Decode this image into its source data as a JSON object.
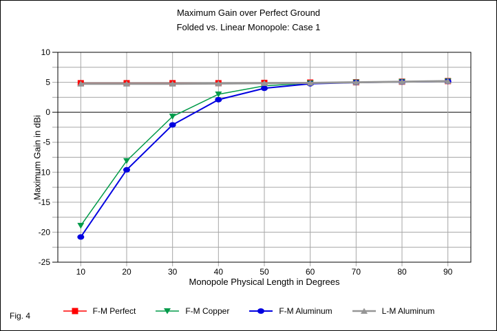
{
  "page": {
    "fig_label": "Fig. 4"
  },
  "chart_data": {
    "type": "line",
    "title": "Maximum Gain over Perfect Ground",
    "subtitle": "Folded vs. Linear Monopole: Case 1",
    "xlabel": "Monopole Physical Length in Degrees",
    "ylabel": "Maximum Gain in dBi",
    "x": [
      10,
      20,
      30,
      40,
      50,
      60,
      70,
      80,
      90
    ],
    "xlim": [
      5,
      95
    ],
    "ylim": [
      -25,
      10
    ],
    "ytick_step": 5,
    "grid_step": 2.5,
    "grid_color": "#a6a6a6",
    "zero_line_color": "#000000",
    "border_color": "#000000",
    "legend_position": "bottom",
    "series": [
      {
        "name": "F-M Perfect",
        "color": "#ff0000",
        "marker": "square",
        "line_width": 1.5,
        "values": [
          4.85,
          4.85,
          4.85,
          4.85,
          4.9,
          4.95,
          5.0,
          5.1,
          5.2
        ]
      },
      {
        "name": "F-M Copper",
        "color": "#009a49",
        "marker": "triangle-down",
        "line_width": 1.5,
        "values": [
          -18.9,
          -8.1,
          -0.7,
          3.0,
          4.4,
          4.85,
          5.0,
          5.1,
          5.2
        ]
      },
      {
        "name": "F-M Aluminum",
        "color": "#0000e0",
        "marker": "circle",
        "line_width": 2,
        "values": [
          -20.8,
          -9.6,
          -2.1,
          2.1,
          4.0,
          4.75,
          4.95,
          5.05,
          5.15
        ]
      },
      {
        "name": "L-M Aluminum",
        "color": "#969696",
        "marker": "triangle-up",
        "line_width": 3,
        "values": [
          4.75,
          4.75,
          4.75,
          4.8,
          4.85,
          4.9,
          5.0,
          5.1,
          5.2
        ]
      }
    ]
  }
}
